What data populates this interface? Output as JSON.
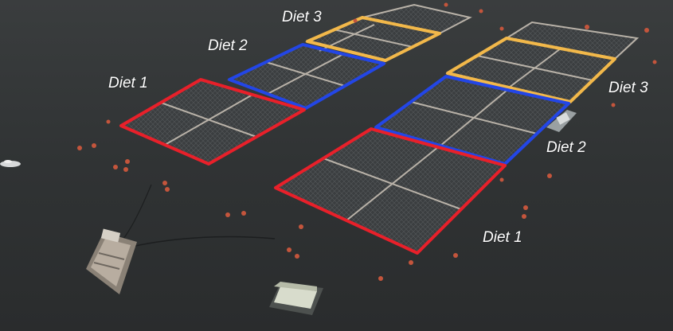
{
  "labels": {
    "left_diet_1": "Diet 1",
    "left_diet_2": "Diet 2",
    "left_diet_3": "Diet 3",
    "right_diet_1": "Diet 1",
    "right_diet_2": "Diet 2",
    "right_diet_3": "Diet 3"
  },
  "colors": {
    "water": "#2f3233",
    "diet_1": "#e8202a",
    "diet_2": "#2346e6",
    "diet_3": "#f2b84a",
    "buoy": "#c4553c",
    "net_frame": "#b9b2a8",
    "net_fill": "#3a3d3f"
  },
  "icons": [
    "fish-pen",
    "buoy",
    "feed-barge",
    "shed-float",
    "small-boat"
  ]
}
